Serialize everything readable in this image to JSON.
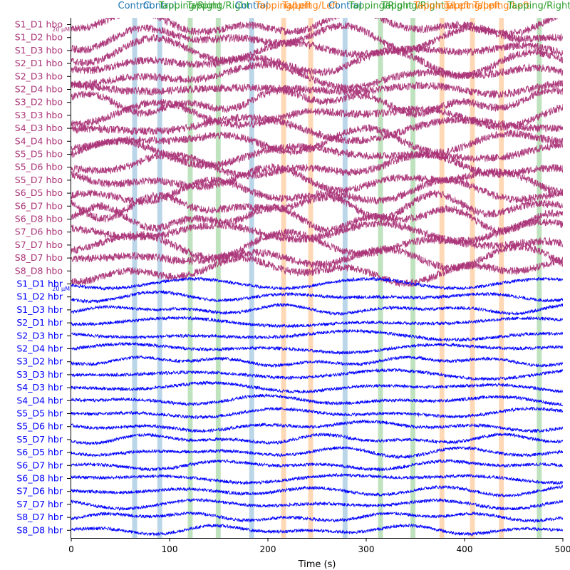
{
  "chart_data": {
    "type": "line",
    "title": "",
    "xlabel": "Time (s)",
    "ylabel": "",
    "xlim": [
      0,
      500
    ],
    "xticks": [
      0,
      100,
      200,
      300,
      400,
      500
    ],
    "grid": false,
    "colors": {
      "hbo": "#aa3377",
      "hbr": "#0000ff",
      "control": "#1f77b4",
      "tapping_left": "#ff7f0e",
      "tapping_right": "#2ca02c",
      "axis": "#000000"
    },
    "scale_bar_labels": {
      "hbo": "20 μM",
      "hbr": "20 μM"
    },
    "series": [
      {
        "name": "S1_D1 hbo",
        "chromophore": "hbo"
      },
      {
        "name": "S1_D2 hbo",
        "chromophore": "hbo"
      },
      {
        "name": "S1_D3 hbo",
        "chromophore": "hbo"
      },
      {
        "name": "S2_D1 hbo",
        "chromophore": "hbo"
      },
      {
        "name": "S2_D3 hbo",
        "chromophore": "hbo"
      },
      {
        "name": "S2_D4 hbo",
        "chromophore": "hbo"
      },
      {
        "name": "S3_D2 hbo",
        "chromophore": "hbo"
      },
      {
        "name": "S3_D3 hbo",
        "chromophore": "hbo"
      },
      {
        "name": "S4_D3 hbo",
        "chromophore": "hbo"
      },
      {
        "name": "S4_D4 hbo",
        "chromophore": "hbo"
      },
      {
        "name": "S5_D5 hbo",
        "chromophore": "hbo"
      },
      {
        "name": "S5_D6 hbo",
        "chromophore": "hbo"
      },
      {
        "name": "S5_D7 hbo",
        "chromophore": "hbo"
      },
      {
        "name": "S6_D5 hbo",
        "chromophore": "hbo"
      },
      {
        "name": "S6_D7 hbo",
        "chromophore": "hbo"
      },
      {
        "name": "S6_D8 hbo",
        "chromophore": "hbo"
      },
      {
        "name": "S7_D6 hbo",
        "chromophore": "hbo"
      },
      {
        "name": "S7_D7 hbo",
        "chromophore": "hbo"
      },
      {
        "name": "S8_D7 hbo",
        "chromophore": "hbo"
      },
      {
        "name": "S8_D8 hbo",
        "chromophore": "hbo"
      },
      {
        "name": "S1_D1 hbr",
        "chromophore": "hbr"
      },
      {
        "name": "S1_D2 hbr",
        "chromophore": "hbr"
      },
      {
        "name": "S1_D3 hbr",
        "chromophore": "hbr"
      },
      {
        "name": "S2_D1 hbr",
        "chromophore": "hbr"
      },
      {
        "name": "S2_D3 hbr",
        "chromophore": "hbr"
      },
      {
        "name": "S2_D4 hbr",
        "chromophore": "hbr"
      },
      {
        "name": "S3_D2 hbr",
        "chromophore": "hbr"
      },
      {
        "name": "S3_D3 hbr",
        "chromophore": "hbr"
      },
      {
        "name": "S4_D3 hbr",
        "chromophore": "hbr"
      },
      {
        "name": "S4_D4 hbr",
        "chromophore": "hbr"
      },
      {
        "name": "S5_D5 hbr",
        "chromophore": "hbr"
      },
      {
        "name": "S5_D6 hbr",
        "chromophore": "hbr"
      },
      {
        "name": "S5_D7 hbr",
        "chromophore": "hbr"
      },
      {
        "name": "S6_D5 hbr",
        "chromophore": "hbr"
      },
      {
        "name": "S6_D7 hbr",
        "chromophore": "hbr"
      },
      {
        "name": "S6_D8 hbr",
        "chromophore": "hbr"
      },
      {
        "name": "S7_D6 hbr",
        "chromophore": "hbr"
      },
      {
        "name": "S7_D7 hbr",
        "chromophore": "hbr"
      },
      {
        "name": "S8_D7 hbr",
        "chromophore": "hbr"
      },
      {
        "name": "S8_D8 hbr",
        "chromophore": "hbr"
      }
    ],
    "annotations": [
      {
        "label": "Control",
        "onset": 62,
        "duration": 5,
        "kind": "control"
      },
      {
        "label": "Control",
        "onset": 87.5,
        "duration": 5,
        "kind": "control"
      },
      {
        "label": "Tapping/Right",
        "onset": 118.5,
        "duration": 5,
        "kind": "tapping_right"
      },
      {
        "label": "Tapping/Right",
        "onset": 147,
        "duration": 5,
        "kind": "tapping_right"
      },
      {
        "label": "Control",
        "onset": 181,
        "duration": 5,
        "kind": "control"
      },
      {
        "label": "Tapping/Left",
        "onset": 213.5,
        "duration": 5,
        "kind": "tapping_left"
      },
      {
        "label": "Tapping/Left",
        "onset": 241,
        "duration": 5,
        "kind": "tapping_left"
      },
      {
        "label": "Control",
        "onset": 276,
        "duration": 5,
        "kind": "control"
      },
      {
        "label": "Tapping/Right",
        "onset": 312,
        "duration": 5,
        "kind": "tapping_right"
      },
      {
        "label": "Tapping/Right",
        "onset": 345,
        "duration": 5,
        "kind": "tapping_right"
      },
      {
        "label": "Tapping/Left",
        "onset": 374.5,
        "duration": 5,
        "kind": "tapping_left"
      },
      {
        "label": "Tapping/Left",
        "onset": 405.5,
        "duration": 5,
        "kind": "tapping_left"
      },
      {
        "label": "Tapping/Left",
        "onset": 435,
        "duration": 5,
        "kind": "tapping_left"
      },
      {
        "label": "Tapping/Right",
        "onset": 473.5,
        "duration": 5,
        "kind": "tapping_right"
      }
    ]
  }
}
